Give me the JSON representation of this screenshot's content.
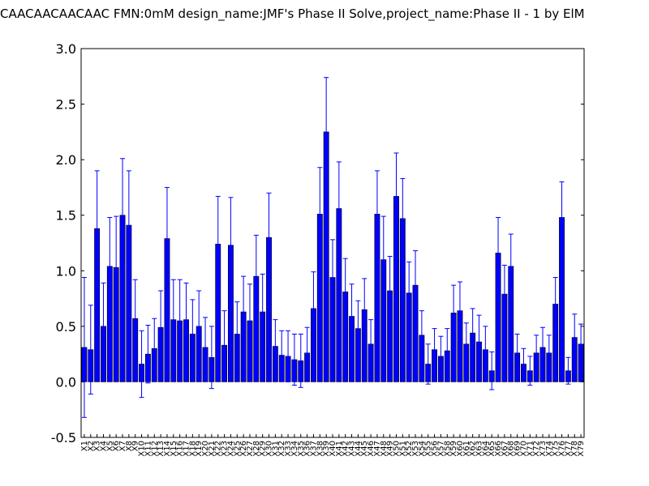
{
  "chart_data": {
    "type": "bar",
    "title": "CAACAACAACAAC  FMN:0mM  design_name:JMF's Phase II Solve,project_name:Phase II - 1 by ElM",
    "xlabel": "",
    "ylabel": "",
    "ylim": [
      -0.5,
      3.0
    ],
    "yticks": [
      "-0.5",
      "0.0",
      "0.5",
      "1.0",
      "1.5",
      "2.0",
      "2.5",
      "3.0"
    ],
    "grid": false,
    "bar_color": "#0000ff",
    "error_color": "#0000ff",
    "categories": [
      "X1",
      "X2",
      "X3",
      "X4",
      "X5",
      "X6",
      "X7",
      "X8",
      "X9",
      "X10",
      "X11",
      "X12",
      "X13",
      "X14",
      "X15",
      "X16",
      "X17",
      "X18",
      "X19",
      "X20",
      "X21",
      "X22",
      "X23",
      "X24",
      "X25",
      "X26",
      "X27",
      "X28",
      "X29",
      "X30",
      "X31",
      "X32",
      "X33",
      "X34",
      "X35",
      "X36",
      "X37",
      "X38",
      "X39",
      "X40",
      "X41",
      "X42",
      "X43",
      "X44",
      "X45",
      "X46",
      "X47",
      "X48",
      "X49",
      "X50",
      "X51",
      "X52",
      "X53",
      "X54",
      "X55",
      "X56",
      "X57",
      "X58",
      "X59",
      "X60",
      "X61",
      "X62",
      "X63",
      "X64",
      "X65",
      "X66",
      "X67",
      "X68",
      "X69",
      "X70",
      "X71",
      "X72",
      "X73",
      "X74",
      "X75",
      "X76",
      "X77",
      "X78",
      "X79"
    ],
    "values": [
      0.31,
      0.29,
      1.38,
      0.5,
      1.04,
      1.03,
      1.5,
      1.41,
      0.57,
      0.16,
      0.25,
      0.3,
      0.49,
      1.29,
      0.56,
      0.55,
      0.56,
      0.43,
      0.5,
      0.31,
      0.22,
      1.24,
      0.33,
      1.23,
      0.43,
      0.63,
      0.55,
      0.95,
      0.63,
      1.3,
      0.32,
      0.24,
      0.23,
      0.2,
      0.19,
      0.26,
      0.66,
      1.51,
      2.25,
      0.94,
      1.56,
      0.81,
      0.59,
      0.48,
      0.65,
      0.34,
      1.51,
      1.1,
      0.82,
      1.67,
      1.47,
      0.8,
      0.87,
      0.42,
      0.16,
      0.29,
      0.23,
      0.28,
      0.62,
      0.64,
      0.34,
      0.44,
      0.36,
      0.29,
      0.1,
      1.16,
      0.79,
      1.04,
      0.26,
      0.16,
      0.1,
      0.26,
      0.31,
      0.26,
      0.7,
      1.48,
      0.1,
      0.4,
      0.34
    ],
    "errors": [
      0.63,
      0.4,
      0.52,
      0.39,
      0.44,
      0.46,
      0.51,
      0.49,
      0.35,
      0.3,
      0.26,
      0.27,
      0.33,
      0.46,
      0.36,
      0.37,
      0.33,
      0.31,
      0.32,
      0.27,
      0.28,
      0.43,
      0.31,
      0.43,
      0.29,
      0.32,
      0.33,
      0.37,
      0.34,
      0.4,
      0.24,
      0.22,
      0.23,
      0.23,
      0.24,
      0.23,
      0.33,
      0.42,
      0.49,
      0.34,
      0.42,
      0.3,
      0.29,
      0.25,
      0.28,
      0.22,
      0.39,
      0.39,
      0.31,
      0.39,
      0.36,
      0.28,
      0.31,
      0.22,
      0.18,
      0.19,
      0.18,
      0.2,
      0.25,
      0.26,
      0.19,
      0.22,
      0.24,
      0.21,
      0.17,
      0.32,
      0.26,
      0.29,
      0.17,
      0.14,
      0.13,
      0.16,
      0.18,
      0.16,
      0.24,
      0.32,
      0.12,
      0.21,
      0.18
    ]
  }
}
